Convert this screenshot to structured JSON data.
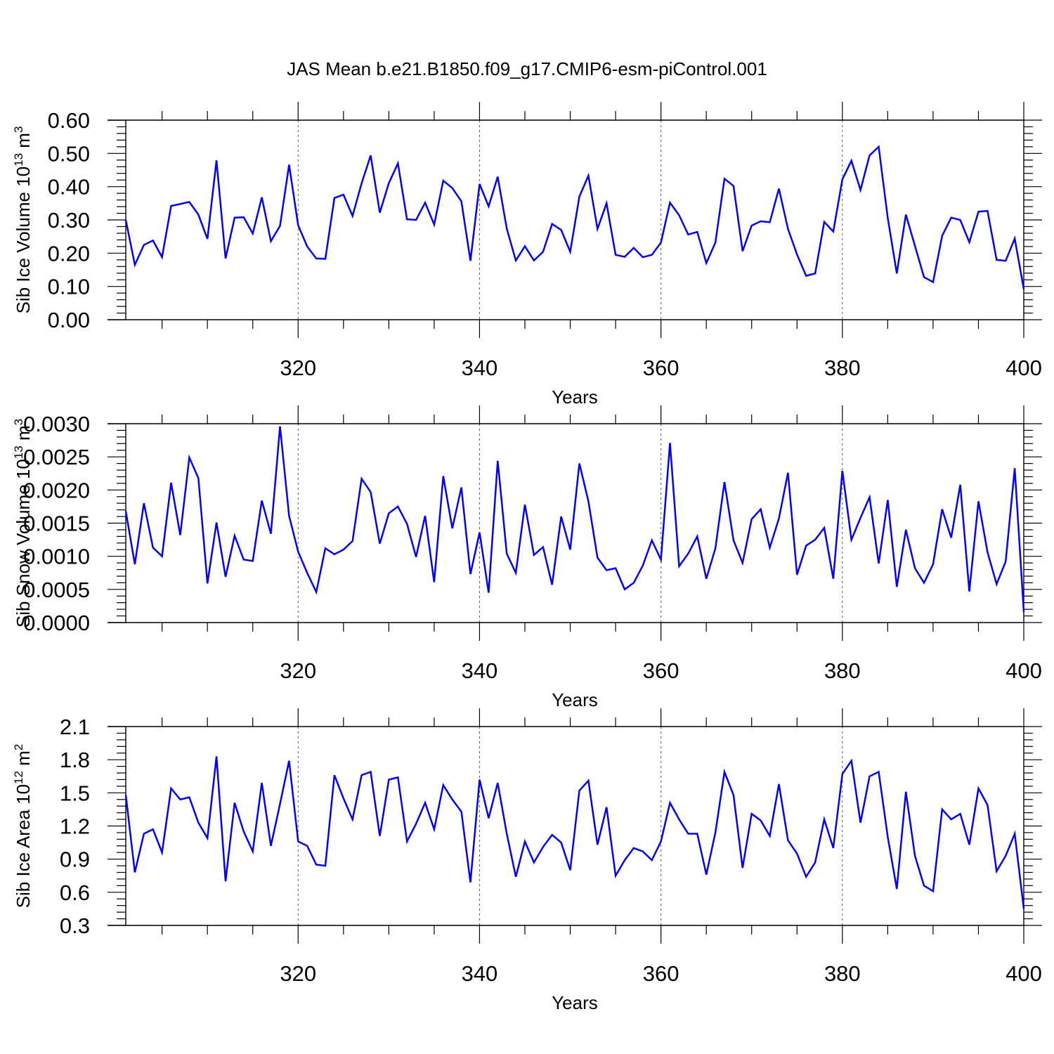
{
  "title": "JAS Mean b.e21.B1850.f09_g17.CMIP6-esm-piControl.001",
  "chart_data": [
    {
      "type": "line",
      "ylabel": "Sib Ice Volume 10",
      "ylabel_sup": "13",
      "ylabel_unit": "m",
      "ylabel_unit_sup": "3",
      "xlabel": "Years",
      "xlim": [
        301,
        400
      ],
      "ylim": [
        0.0,
        0.6
      ],
      "xticks": [
        320,
        340,
        360,
        380,
        400
      ],
      "xtick_labels": [
        "320",
        "340",
        "360",
        "380",
        "400"
      ],
      "yticks": [
        0.0,
        0.1,
        0.2,
        0.3,
        0.4,
        0.5,
        0.6
      ],
      "ytick_labels": [
        "0.00",
        "0.10",
        "0.20",
        "0.30",
        "0.40",
        "0.50",
        "0.60"
      ],
      "y_minor_step": 0.02,
      "x": [
        301,
        302,
        303,
        304,
        305,
        306,
        307,
        308,
        309,
        310,
        311,
        312,
        313,
        314,
        315,
        316,
        317,
        318,
        319,
        320,
        321,
        322,
        323,
        324,
        325,
        326,
        327,
        328,
        329,
        330,
        331,
        332,
        333,
        334,
        335,
        336,
        337,
        338,
        339,
        340,
        341,
        342,
        343,
        344,
        345,
        346,
        347,
        348,
        349,
        350,
        351,
        352,
        353,
        354,
        355,
        356,
        357,
        358,
        359,
        360,
        361,
        362,
        363,
        364,
        365,
        366,
        367,
        368,
        369,
        370,
        371,
        372,
        373,
        374,
        375,
        376,
        377,
        378,
        379,
        380,
        381,
        382,
        383,
        384,
        385,
        386,
        387,
        388,
        389,
        390,
        391,
        392,
        393,
        394,
        395,
        396,
        397,
        398,
        399,
        400
      ],
      "values": [
        0.3,
        0.165,
        0.225,
        0.238,
        0.188,
        0.342,
        0.348,
        0.354,
        0.316,
        0.243,
        0.479,
        0.184,
        0.307,
        0.308,
        0.259,
        0.368,
        0.236,
        0.282,
        0.466,
        0.284,
        0.22,
        0.184,
        0.183,
        0.366,
        0.376,
        0.312,
        0.41,
        0.494,
        0.322,
        0.411,
        0.47,
        0.302,
        0.3,
        0.352,
        0.286,
        0.418,
        0.396,
        0.356,
        0.177,
        0.408,
        0.341,
        0.43,
        0.274,
        0.178,
        0.221,
        0.178,
        0.204,
        0.288,
        0.27,
        0.204,
        0.37,
        0.433,
        0.273,
        0.35,
        0.195,
        0.189,
        0.216,
        0.188,
        0.195,
        0.232,
        0.352,
        0.314,
        0.256,
        0.264,
        0.17,
        0.232,
        0.424,
        0.402,
        0.206,
        0.283,
        0.296,
        0.293,
        0.394,
        0.273,
        0.196,
        0.132,
        0.139,
        0.294,
        0.265,
        0.422,
        0.478,
        0.39,
        0.494,
        0.52,
        0.306,
        0.139,
        0.316,
        0.222,
        0.128,
        0.113,
        0.252,
        0.307,
        0.3,
        0.233,
        0.325,
        0.327,
        0.18,
        0.177,
        0.244,
        0.092
      ]
    },
    {
      "type": "line",
      "ylabel": "Sib Snow Volume 10",
      "ylabel_sup": "13",
      "ylabel_unit": "m",
      "ylabel_unit_sup": "3",
      "xlabel": "Years",
      "xlim": [
        301,
        400
      ],
      "ylim": [
        0.0,
        0.003
      ],
      "xticks": [
        320,
        340,
        360,
        380,
        400
      ],
      "xtick_labels": [
        "320",
        "340",
        "360",
        "380",
        "400"
      ],
      "yticks": [
        0.0,
        0.0005,
        0.001,
        0.0015,
        0.002,
        0.0025,
        0.003
      ],
      "ytick_labels": [
        "0.0000",
        "0.0005",
        "0.0010",
        "0.0015",
        "0.0020",
        "0.0025",
        "0.0030"
      ],
      "y_minor_step": 0.0001,
      "x": [
        301,
        302,
        303,
        304,
        305,
        306,
        307,
        308,
        309,
        310,
        311,
        312,
        313,
        314,
        315,
        316,
        317,
        318,
        319,
        320,
        321,
        322,
        323,
        324,
        325,
        326,
        327,
        328,
        329,
        330,
        331,
        332,
        333,
        334,
        335,
        336,
        337,
        338,
        339,
        340,
        341,
        342,
        343,
        344,
        345,
        346,
        347,
        348,
        349,
        350,
        351,
        352,
        353,
        354,
        355,
        356,
        357,
        358,
        359,
        360,
        361,
        362,
        363,
        364,
        365,
        366,
        367,
        368,
        369,
        370,
        371,
        372,
        373,
        374,
        375,
        376,
        377,
        378,
        379,
        380,
        381,
        382,
        383,
        384,
        385,
        386,
        387,
        388,
        389,
        390,
        391,
        392,
        393,
        394,
        395,
        396,
        397,
        398,
        399,
        400
      ],
      "values": [
        0.00168,
        0.00088,
        0.0018,
        0.00113,
        0.001,
        0.00211,
        0.00132,
        0.00249,
        0.00218,
        0.00059,
        0.00151,
        0.00069,
        0.00131,
        0.00095,
        0.00093,
        0.00184,
        0.00134,
        0.00296,
        0.00161,
        0.00107,
        0.00075,
        0.00046,
        0.00112,
        0.00103,
        0.0011,
        0.00123,
        0.00217,
        0.00197,
        0.00119,
        0.00165,
        0.00175,
        0.00149,
        0.00099,
        0.00161,
        0.00061,
        0.00221,
        0.00142,
        0.00204,
        0.00073,
        0.00136,
        0.00045,
        0.00244,
        0.00104,
        0.00075,
        0.00178,
        0.00102,
        0.00114,
        0.00057,
        0.0016,
        0.0011,
        0.0024,
        0.00183,
        0.00098,
        0.00079,
        0.00082,
        0.0005,
        0.0006,
        0.00086,
        0.00124,
        0.00095,
        0.00271,
        0.00085,
        0.00104,
        0.0013,
        0.00066,
        0.00112,
        0.00212,
        0.00124,
        0.0009,
        0.00156,
        0.00171,
        0.00113,
        0.00157,
        0.00226,
        0.00072,
        0.00116,
        0.00125,
        0.00143,
        0.00066,
        0.00229,
        0.00125,
        0.00158,
        0.00189,
        0.00089,
        0.00185,
        0.00054,
        0.0014,
        0.00082,
        0.0006,
        0.00088,
        0.00171,
        0.00128,
        0.00208,
        0.00047,
        0.00183,
        0.00106,
        0.00058,
        0.00092,
        0.00233,
        0.00016
      ]
    },
    {
      "type": "line",
      "ylabel": "Sib Ice Area 10",
      "ylabel_sup": "12",
      "ylabel_unit": "m",
      "ylabel_unit_sup": "2",
      "xlabel": "Years",
      "xlim": [
        301,
        400
      ],
      "ylim": [
        0.3,
        2.1
      ],
      "xticks": [
        320,
        340,
        360,
        380,
        400
      ],
      "xtick_labels": [
        "320",
        "340",
        "360",
        "380",
        "400"
      ],
      "yticks": [
        0.3,
        0.6,
        0.9,
        1.2,
        1.5,
        1.8,
        2.1
      ],
      "ytick_labels": [
        "0.3",
        "0.6",
        "0.9",
        "1.2",
        "1.5",
        "1.8",
        "2.1"
      ],
      "y_minor_step": 0.06,
      "x": [
        301,
        302,
        303,
        304,
        305,
        306,
        307,
        308,
        309,
        310,
        311,
        312,
        313,
        314,
        315,
        316,
        317,
        318,
        319,
        320,
        321,
        322,
        323,
        324,
        325,
        326,
        327,
        328,
        329,
        330,
        331,
        332,
        333,
        334,
        335,
        336,
        337,
        338,
        339,
        340,
        341,
        342,
        343,
        344,
        345,
        346,
        347,
        348,
        349,
        350,
        351,
        352,
        353,
        354,
        355,
        356,
        357,
        358,
        359,
        360,
        361,
        362,
        363,
        364,
        365,
        366,
        367,
        368,
        369,
        370,
        371,
        372,
        373,
        374,
        375,
        376,
        377,
        378,
        379,
        380,
        381,
        382,
        383,
        384,
        385,
        386,
        387,
        388,
        389,
        390,
        391,
        392,
        393,
        394,
        395,
        396,
        397,
        398,
        399,
        400
      ],
      "values": [
        1.48,
        0.78,
        1.13,
        1.17,
        0.96,
        1.54,
        1.44,
        1.46,
        1.23,
        1.09,
        1.83,
        0.7,
        1.41,
        1.15,
        0.97,
        1.59,
        1.02,
        1.4,
        1.79,
        1.06,
        1.02,
        0.85,
        0.84,
        1.66,
        1.45,
        1.26,
        1.66,
        1.69,
        1.11,
        1.62,
        1.64,
        1.06,
        1.22,
        1.41,
        1.17,
        1.57,
        1.44,
        1.33,
        0.69,
        1.62,
        1.27,
        1.59,
        1.13,
        0.74,
        1.06,
        0.87,
        1.01,
        1.12,
        1.05,
        0.8,
        1.52,
        1.61,
        1.03,
        1.37,
        0.75,
        0.89,
        1.0,
        0.97,
        0.89,
        1.06,
        1.41,
        1.26,
        1.13,
        1.13,
        0.76,
        1.14,
        1.69,
        1.48,
        0.82,
        1.31,
        1.25,
        1.11,
        1.58,
        1.07,
        0.95,
        0.74,
        0.87,
        1.26,
        1.0,
        1.67,
        1.79,
        1.23,
        1.65,
        1.69,
        1.1,
        0.63,
        1.51,
        0.93,
        0.66,
        0.61,
        1.35,
        1.26,
        1.31,
        1.03,
        1.54,
        1.39,
        0.79,
        0.93,
        1.13,
        0.45
      ]
    }
  ]
}
